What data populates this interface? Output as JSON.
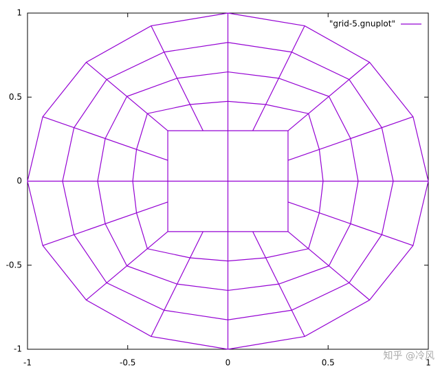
{
  "chart_data": {
    "type": "line",
    "xlim": [
      -1,
      1
    ],
    "ylim": [
      -1,
      1
    ],
    "xticks": [
      -1,
      -0.5,
      0,
      0.5,
      1
    ],
    "yticks": [
      -1,
      -0.5,
      0,
      0.5,
      1
    ],
    "grid": false,
    "legend": "top-right",
    "watermark": "知乎 @冷风",
    "series": [
      {
        "name": "\"grid-5.gnuplot\"",
        "color": "#9400d3",
        "x": [
          0.3,
          0.3,
          0.3,
          0.124,
          0,
          -0.124,
          -0.3,
          -0.3,
          -0.3,
          -0.3,
          -0.3,
          -0.124,
          0,
          0.124,
          0.3,
          0.3,
          0.3,
          null,
          0.475,
          0.456,
          0.402,
          0.189,
          0,
          -0.189,
          -0.402,
          -0.456,
          -0.475,
          -0.456,
          -0.402,
          -0.189,
          0,
          0.189,
          0.402,
          0.456,
          0.475,
          null,
          0.65,
          0.612,
          0.504,
          0.254,
          0,
          -0.254,
          -0.504,
          -0.612,
          -0.65,
          -0.612,
          -0.504,
          -0.254,
          0,
          0.254,
          0.504,
          0.612,
          0.65,
          null,
          0.825,
          0.768,
          0.605,
          0.318,
          0,
          -0.318,
          -0.605,
          -0.768,
          -0.825,
          -0.768,
          -0.605,
          -0.318,
          0,
          0.318,
          0.605,
          0.768,
          0.825,
          null,
          1,
          0.924,
          0.707,
          0.383,
          0,
          -0.383,
          -0.707,
          -0.924,
          -1,
          -0.924,
          -0.707,
          -0.383,
          0,
          0.383,
          0.707,
          0.924,
          1,
          null,
          -1,
          1,
          null,
          0,
          0,
          null,
          0.3,
          0.924,
          null,
          0.3,
          0.707,
          null,
          0.124,
          0.383,
          null,
          -0.124,
          -0.383,
          null,
          -0.3,
          -0.707,
          null,
          -0.3,
          -0.924,
          null,
          -0.3,
          -0.924,
          null,
          -0.3,
          -0.707,
          null,
          -0.124,
          -0.383,
          null,
          0.124,
          0.383,
          null,
          0.3,
          0.707,
          null,
          0.3,
          0.924
        ],
        "values": [
          0,
          0.124,
          0.3,
          0.3,
          0.3,
          0.3,
          0.3,
          0.124,
          0,
          -0.124,
          -0.3,
          -0.3,
          -0.3,
          -0.3,
          -0.3,
          -0.124,
          0,
          null,
          0,
          0.189,
          0.402,
          0.456,
          0.475,
          0.456,
          0.402,
          0.189,
          0,
          -0.189,
          -0.402,
          -0.456,
          -0.475,
          -0.456,
          -0.402,
          -0.189,
          0,
          null,
          0,
          0.254,
          0.504,
          0.612,
          0.65,
          0.612,
          0.504,
          0.254,
          0,
          -0.254,
          -0.504,
          -0.612,
          -0.65,
          -0.612,
          -0.504,
          -0.254,
          0,
          null,
          0,
          0.318,
          0.605,
          0.768,
          0.825,
          0.768,
          0.605,
          0.318,
          0,
          -0.318,
          -0.605,
          -0.768,
          -0.825,
          -0.768,
          -0.605,
          -0.318,
          0,
          null,
          0,
          0.383,
          0.707,
          0.924,
          1,
          0.924,
          0.707,
          0.383,
          0,
          -0.383,
          -0.707,
          -0.924,
          -1,
          -0.924,
          -0.707,
          -0.383,
          0,
          null,
          0,
          0,
          null,
          -1,
          1,
          null,
          0.124,
          0.383,
          null,
          0.3,
          0.707,
          null,
          0.3,
          0.924,
          null,
          0.3,
          0.924,
          null,
          0.3,
          0.707,
          null,
          0.124,
          0.383,
          null,
          -0.124,
          -0.383,
          null,
          -0.3,
          -0.707,
          null,
          -0.3,
          -0.924,
          null,
          -0.3,
          -0.924,
          null,
          -0.3,
          -0.707,
          null,
          -0.124,
          -0.383
        ]
      }
    ]
  }
}
